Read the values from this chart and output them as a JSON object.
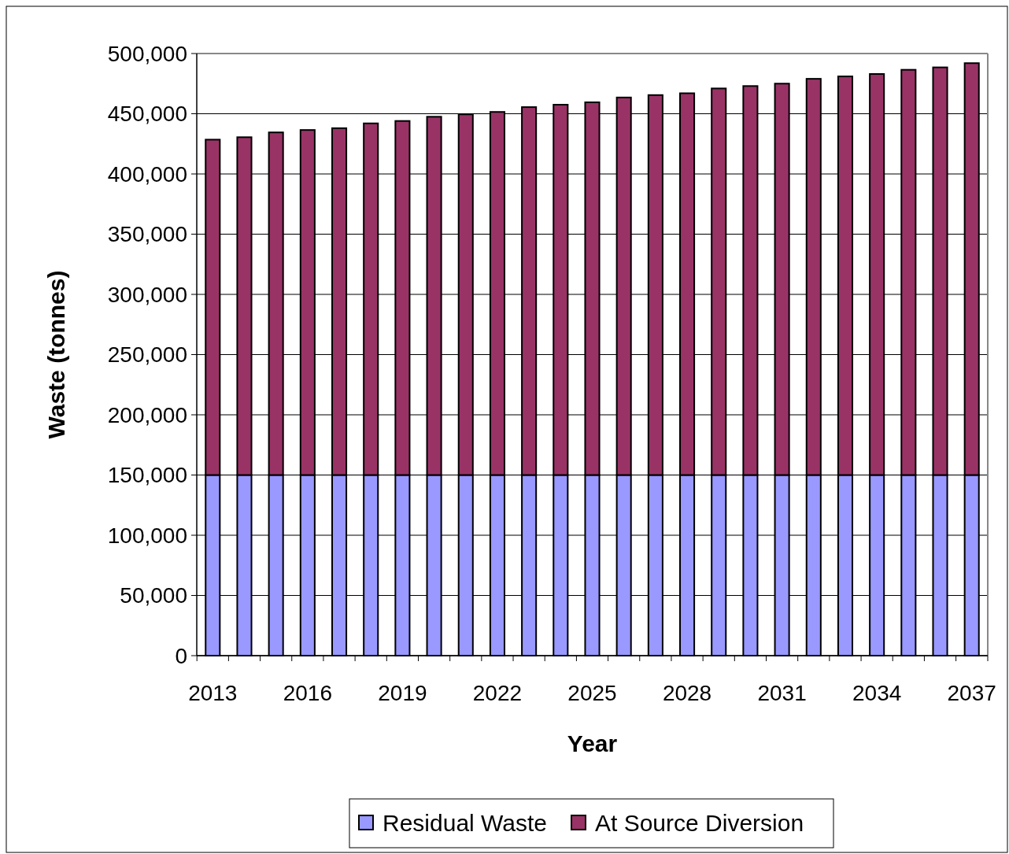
{
  "chart_data": {
    "type": "bar",
    "stacked": true,
    "xlabel": "Year",
    "ylabel": "Waste (tonnes)",
    "categories": [
      "2013",
      null,
      null,
      "2016",
      null,
      null,
      "2019",
      null,
      null,
      "2022",
      null,
      null,
      "2025",
      null,
      null,
      "2028",
      null,
      null,
      "2031",
      null,
      null,
      "2034",
      null,
      null,
      "2037"
    ],
    "series": [
      {
        "name": "Residual Waste",
        "color": "#9999ff",
        "values": [
          150000,
          150000,
          150000,
          150000,
          150000,
          150000,
          150000,
          150000,
          150000,
          150000,
          150000,
          150000,
          150000,
          150000,
          150000,
          150000,
          150000,
          150000,
          150000,
          150000,
          150000,
          150000,
          150000,
          150000,
          150000
        ]
      },
      {
        "name": "At Source Diversion",
        "color": "#993366",
        "values": [
          278500,
          280500,
          284500,
          286500,
          288000,
          292000,
          294000,
          297500,
          299500,
          301500,
          305500,
          307500,
          309500,
          313500,
          315500,
          317000,
          321000,
          323000,
          325000,
          329000,
          331000,
          333000,
          336500,
          338500,
          342000
        ]
      }
    ],
    "ylim": [
      0,
      500000
    ],
    "yticks": [
      {
        "value": 0,
        "label": "0"
      },
      {
        "value": 50000,
        "label": "50,000"
      },
      {
        "value": 100000,
        "label": "100,000"
      },
      {
        "value": 150000,
        "label": "150,000"
      },
      {
        "value": 200000,
        "label": "200,000"
      },
      {
        "value": 250000,
        "label": "250,000"
      },
      {
        "value": 300000,
        "label": "300,000"
      },
      {
        "value": 350000,
        "label": "350,000"
      },
      {
        "value": 400000,
        "label": "400,000"
      },
      {
        "value": 450000,
        "label": "450,000"
      },
      {
        "value": 500000,
        "label": "500,000"
      }
    ],
    "grid": "y",
    "legend": "bottom"
  }
}
